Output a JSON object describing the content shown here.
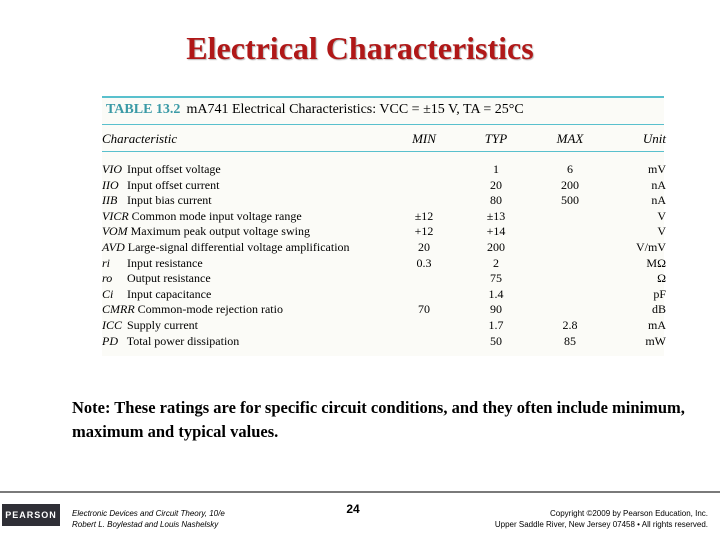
{
  "slide": {
    "title": "Electrical Characteristics"
  },
  "table": {
    "label": "TABLE 13.2",
    "caption": "mA741 Electrical Characteristics: VCC = ±15 V, TA = 25°C",
    "headers": {
      "characteristic": "Characteristic",
      "min": "MIN",
      "typ": "TYP",
      "max": "MAX",
      "unit": "Unit"
    },
    "rows": [
      {
        "symbol": "VIO",
        "name": "Input offset voltage",
        "min": "",
        "typ": "1",
        "max": "6",
        "unit": "mV"
      },
      {
        "symbol": "IIO",
        "name": "Input offset current",
        "min": "",
        "typ": "20",
        "max": "200",
        "unit": "nA"
      },
      {
        "symbol": "IIB",
        "name": "Input bias current",
        "min": "",
        "typ": "80",
        "max": "500",
        "unit": "nA"
      },
      {
        "symbol": "VICR",
        "name": "Common mode input voltage range",
        "min": "±12",
        "typ": "±13",
        "max": "",
        "unit": "V"
      },
      {
        "symbol": "VOM",
        "name": "Maximum peak output voltage swing",
        "min": "+12",
        "typ": "+14",
        "max": "",
        "unit": "V"
      },
      {
        "symbol": "AVD",
        "name": "Large-signal differential voltage amplification",
        "min": "20",
        "typ": "200",
        "max": "",
        "unit": "V/mV"
      },
      {
        "symbol": "ri",
        "name": "Input resistance",
        "min": "0.3",
        "typ": "2",
        "max": "",
        "unit": "MΩ"
      },
      {
        "symbol": "ro",
        "name": "Output resistance",
        "min": "",
        "typ": "75",
        "max": "",
        "unit": "Ω"
      },
      {
        "symbol": "Ci",
        "name": "Input capacitance",
        "min": "",
        "typ": "1.4",
        "max": "",
        "unit": "pF"
      },
      {
        "symbol": "CMRR",
        "name": "Common-mode rejection ratio",
        "min": "70",
        "typ": "90",
        "max": "",
        "unit": "dB"
      },
      {
        "symbol": "ICC",
        "name": "Supply current",
        "min": "",
        "typ": "1.7",
        "max": "2.8",
        "unit": "mA"
      },
      {
        "symbol": "PD",
        "name": "Total power dissipation",
        "min": "",
        "typ": "50",
        "max": "85",
        "unit": "mW"
      }
    ]
  },
  "note": "Note: These ratings are for specific circuit conditions, and they often include minimum, maximum and typical values.",
  "footer": {
    "logo": "PEARSON",
    "book_line1": "Electronic Devices and Circuit Theory, 10/e",
    "book_line2": "Robert L. Boylestad and Louis Nashelsky",
    "page_number": "24",
    "copyright_line1": "Copyright ©2009 by Pearson Education, Inc.",
    "copyright_line2": "Upper Saddle River, New Jersey 07458 • All rights reserved."
  },
  "colors": {
    "title": "#b01818",
    "table_rule": "#59c0cd",
    "table_label": "#3a9aa6"
  }
}
